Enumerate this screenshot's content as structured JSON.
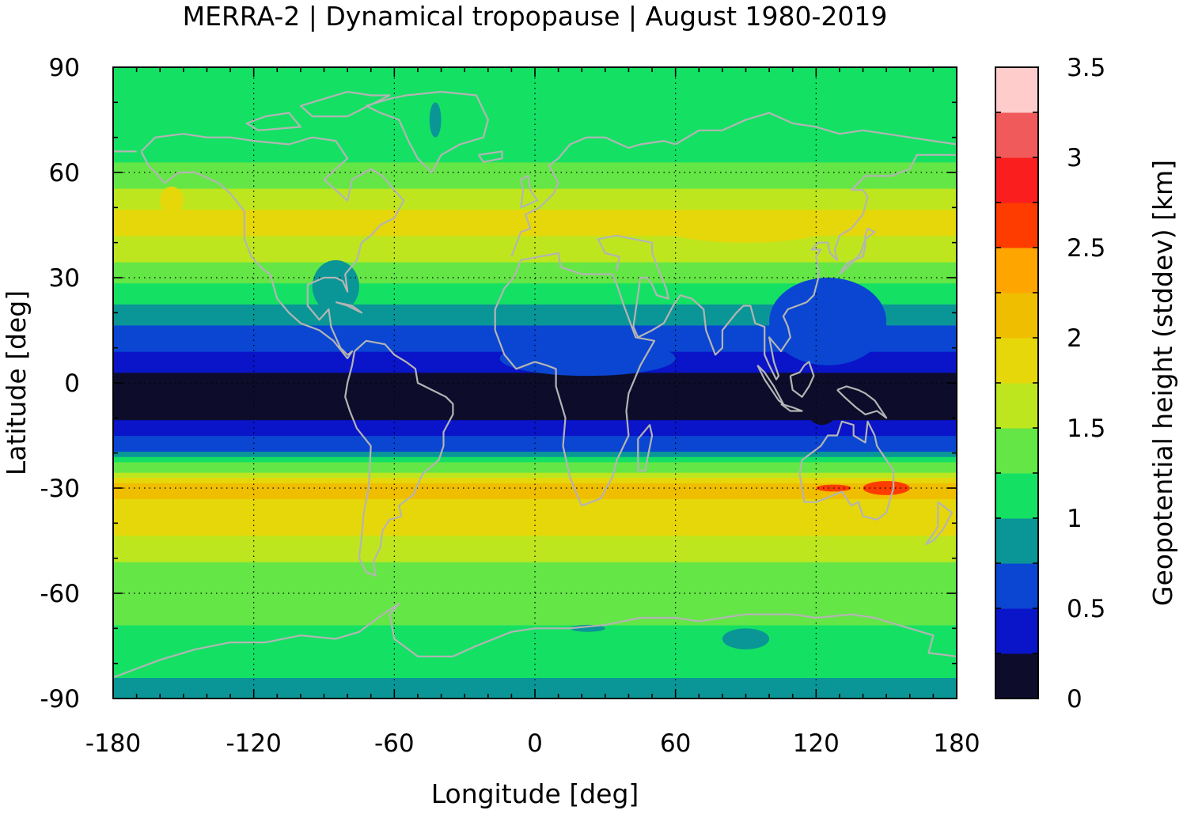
{
  "chart_data": {
    "type": "heatmap",
    "title": "MERRA-2 | Dynamical tropopause | August 1980-2019",
    "xlabel": "Longitude [deg]",
    "ylabel": "Latitude [deg]",
    "colorbar_label": "Geopotential height (stddev) [km]",
    "xlim": [
      -180,
      180
    ],
    "ylim": [
      -90,
      90
    ],
    "x_ticks": [
      "-180",
      "-120",
      "-60",
      "0",
      "60",
      "120",
      "180"
    ],
    "y_ticks": [
      "90",
      "60",
      "30",
      "0",
      "-30",
      "-60",
      "-90"
    ],
    "x_tick_values": [
      -180,
      -120,
      -60,
      0,
      60,
      120,
      180
    ],
    "y_tick_values": [
      90,
      60,
      30,
      0,
      -30,
      -60,
      -90
    ],
    "colorbar_range": [
      0,
      3.5
    ],
    "colorbar_ticks": [
      "0",
      "0.5",
      "1",
      "1.5",
      "2",
      "2.5",
      "3",
      "3.5"
    ],
    "colorbar_tick_values": [
      0,
      0.5,
      1,
      1.5,
      2,
      2.5,
      3,
      3.5
    ],
    "grid": true,
    "coastlines": true,
    "colorbar_levels": [
      {
        "from": 0.0,
        "to": 0.25,
        "color": "#0d0d2b"
      },
      {
        "from": 0.25,
        "to": 0.5,
        "color": "#0a14c8"
      },
      {
        "from": 0.5,
        "to": 0.75,
        "color": "#0a46d2"
      },
      {
        "from": 0.75,
        "to": 1.0,
        "color": "#0a9696"
      },
      {
        "from": 1.0,
        "to": 1.25,
        "color": "#14e164"
      },
      {
        "from": 1.25,
        "to": 1.5,
        "color": "#64e646"
      },
      {
        "from": 1.5,
        "to": 1.75,
        "color": "#bee61e"
      },
      {
        "from": 1.75,
        "to": 2.0,
        "color": "#e6d70a"
      },
      {
        "from": 2.0,
        "to": 2.25,
        "color": "#f0be00"
      },
      {
        "from": 2.25,
        "to": 2.5,
        "color": "#ffa500"
      },
      {
        "from": 2.5,
        "to": 2.75,
        "color": "#ff3c00"
      },
      {
        "from": 2.75,
        "to": 3.0,
        "color": "#fa1e1e"
      },
      {
        "from": 3.0,
        "to": 3.25,
        "color": "#f05a5a"
      },
      {
        "from": 3.25,
        "to": 3.5,
        "color": "#ffcccc"
      }
    ],
    "zonal_profile": {
      "latitude": [
        -90,
        -85,
        -80,
        -75,
        -70,
        -65,
        -60,
        -55,
        -50,
        -45,
        -40,
        -35,
        -30,
        -25,
        -20,
        -15,
        -10,
        -5,
        0,
        5,
        10,
        15,
        20,
        25,
        30,
        35,
        40,
        45,
        50,
        55,
        60,
        65,
        70,
        75,
        80,
        85,
        90
      ],
      "value": [
        0.9,
        0.95,
        1.1,
        1.15,
        1.2,
        1.35,
        1.3,
        1.4,
        1.55,
        1.7,
        1.85,
        1.95,
        2.1,
        1.5,
        0.8,
        0.45,
        0.2,
        0.15,
        0.15,
        0.3,
        0.55,
        0.7,
        0.85,
        1.1,
        1.3,
        1.55,
        1.7,
        1.8,
        1.75,
        1.5,
        1.3,
        1.2,
        1.2,
        1.2,
        1.15,
        1.1,
        1.1
      ]
    },
    "regional_features": [
      {
        "lon": [
          -15,
          60
        ],
        "lat": [
          2,
          12
        ],
        "value": 0.6
      },
      {
        "lon": [
          -45,
          -40
        ],
        "lat": [
          70,
          80
        ],
        "value": 0.9
      },
      {
        "lon": [
          -95,
          -75
        ],
        "lat": [
          20,
          35
        ],
        "value": 0.9
      },
      {
        "lon": [
          100,
          150
        ],
        "lat": [
          5,
          30
        ],
        "value": 0.6
      },
      {
        "lon": [
          55,
          125
        ],
        "lat": [
          40,
          48
        ],
        "value": 1.95
      },
      {
        "lon": [
          -150,
          -160
        ],
        "lat": [
          48,
          56
        ],
        "value": 1.85
      },
      {
        "lon": [
          115,
          130
        ],
        "lat": [
          -12,
          0
        ],
        "value": 0.15
      },
      {
        "lon": [
          140,
          160
        ],
        "lat": [
          -32,
          -28
        ],
        "value": 2.7
      },
      {
        "lon": [
          120,
          135
        ],
        "lat": [
          -31,
          -29
        ],
        "value": 2.5
      },
      {
        "lon": [
          80,
          100
        ],
        "lat": [
          -76,
          -70
        ],
        "value": 0.9
      },
      {
        "lon": [
          15,
          30
        ],
        "lat": [
          -71,
          -69
        ],
        "value": 0.9
      }
    ]
  }
}
